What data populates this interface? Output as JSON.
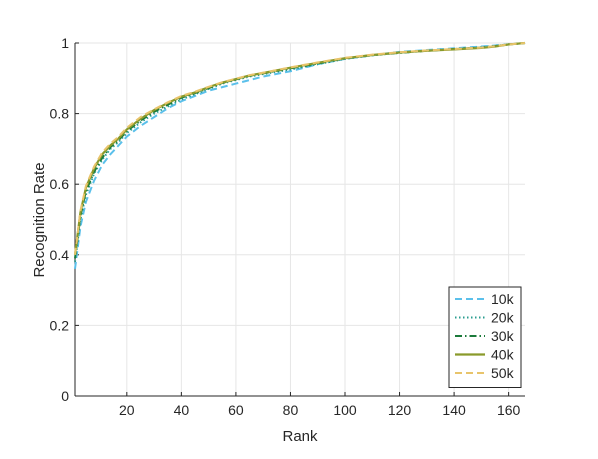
{
  "chart_data": {
    "type": "line",
    "title": "",
    "xlabel": "Rank",
    "ylabel": "Recognition Rate",
    "xlim": [
      1,
      166
    ],
    "ylim": [
      0,
      1
    ],
    "xticks": [
      20,
      40,
      60,
      80,
      100,
      120,
      140,
      160
    ],
    "yticks": [
      0,
      0.2,
      0.4,
      0.6,
      0.8,
      1
    ],
    "ytick_labels": [
      "0",
      "0.2",
      "0.4",
      "0.6",
      "0.8",
      "1"
    ],
    "grid": true,
    "legend_position": "bottom-right",
    "series": [
      {
        "name": "10k",
        "color": "#5bc0eb",
        "dash": "dashed",
        "x": [
          1,
          3,
          5,
          8,
          11,
          14,
          17,
          20,
          25,
          30,
          35,
          40,
          45,
          50,
          55,
          60,
          65,
          70,
          80,
          90,
          100,
          110,
          120,
          130,
          140,
          150,
          155,
          160,
          166
        ],
        "y": [
          0.36,
          0.48,
          0.55,
          0.61,
          0.655,
          0.685,
          0.71,
          0.735,
          0.765,
          0.79,
          0.815,
          0.835,
          0.85,
          0.865,
          0.875,
          0.885,
          0.895,
          0.905,
          0.92,
          0.94,
          0.955,
          0.965,
          0.975,
          0.98,
          0.985,
          0.99,
          0.993,
          0.996,
          1.0
        ]
      },
      {
        "name": "20k",
        "color": "#2a9d8f",
        "dash": "dotted",
        "x": [
          1,
          3,
          5,
          8,
          11,
          14,
          17,
          20,
          25,
          30,
          35,
          40,
          45,
          50,
          55,
          60,
          65,
          70,
          80,
          90,
          100,
          110,
          120,
          130,
          140,
          150,
          155,
          160,
          166
        ],
        "y": [
          0.38,
          0.5,
          0.57,
          0.63,
          0.67,
          0.7,
          0.72,
          0.745,
          0.775,
          0.8,
          0.82,
          0.84,
          0.855,
          0.87,
          0.885,
          0.895,
          0.905,
          0.912,
          0.925,
          0.94,
          0.955,
          0.965,
          0.972,
          0.978,
          0.983,
          0.988,
          0.992,
          0.996,
          1.0
        ]
      },
      {
        "name": "30k",
        "color": "#1b7a3a",
        "dash": "dashdot",
        "x": [
          1,
          3,
          5,
          8,
          11,
          14,
          17,
          20,
          25,
          30,
          35,
          40,
          45,
          50,
          55,
          60,
          65,
          70,
          80,
          90,
          100,
          110,
          120,
          130,
          140,
          150,
          155,
          160,
          166
        ],
        "y": [
          0.39,
          0.51,
          0.58,
          0.635,
          0.675,
          0.705,
          0.725,
          0.75,
          0.78,
          0.805,
          0.825,
          0.845,
          0.858,
          0.872,
          0.887,
          0.897,
          0.907,
          0.914,
          0.928,
          0.942,
          0.956,
          0.966,
          0.972,
          0.978,
          0.983,
          0.987,
          0.991,
          0.996,
          1.0
        ]
      },
      {
        "name": "40k",
        "color": "#8a9a2b",
        "dash": "solid",
        "x": [
          1,
          3,
          5,
          8,
          11,
          14,
          17,
          20,
          25,
          30,
          35,
          40,
          45,
          50,
          55,
          60,
          65,
          70,
          80,
          90,
          100,
          110,
          120,
          130,
          140,
          150,
          155,
          160,
          166
        ],
        "y": [
          0.4,
          0.52,
          0.59,
          0.645,
          0.685,
          0.71,
          0.73,
          0.755,
          0.785,
          0.81,
          0.83,
          0.848,
          0.86,
          0.875,
          0.888,
          0.898,
          0.908,
          0.915,
          0.93,
          0.944,
          0.957,
          0.966,
          0.973,
          0.978,
          0.982,
          0.986,
          0.99,
          0.996,
          1.0
        ]
      },
      {
        "name": "50k",
        "color": "#e8c46b",
        "dash": "dashed",
        "x": [
          1,
          3,
          5,
          8,
          11,
          14,
          17,
          20,
          25,
          30,
          35,
          40,
          45,
          50,
          55,
          60,
          65,
          70,
          80,
          90,
          100,
          110,
          120,
          130,
          140,
          150,
          155,
          160,
          166
        ],
        "y": [
          0.4,
          0.525,
          0.595,
          0.65,
          0.69,
          0.715,
          0.735,
          0.76,
          0.79,
          0.812,
          0.832,
          0.85,
          0.862,
          0.876,
          0.889,
          0.899,
          0.909,
          0.916,
          0.931,
          0.945,
          0.958,
          0.967,
          0.974,
          0.979,
          0.983,
          0.987,
          0.991,
          0.996,
          1.0
        ]
      }
    ]
  }
}
